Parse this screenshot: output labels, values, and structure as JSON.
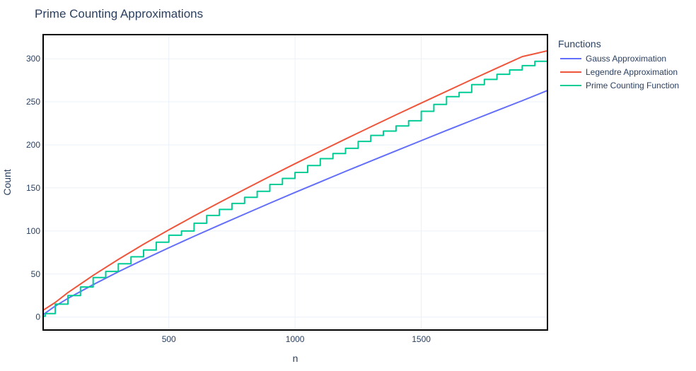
{
  "chart_data": {
    "type": "line",
    "title": "Prime Counting Approximations",
    "xlabel": "n",
    "ylabel": "Count",
    "xlim": [
      2,
      2000
    ],
    "ylim": [
      -15,
      328
    ],
    "x_ticks": [
      500,
      1000,
      1500
    ],
    "y_ticks": [
      0,
      50,
      100,
      150,
      200,
      250,
      300
    ],
    "grid": true,
    "legend": {
      "title": "Functions",
      "placement": "right"
    },
    "series": [
      {
        "name": "Gauss Approximation",
        "color": "#636efa",
        "x": [
          2,
          50,
          100,
          200,
          300,
          400,
          500,
          600,
          700,
          800,
          900,
          1000,
          1100,
          1200,
          1300,
          1400,
          1500,
          1600,
          1700,
          1800,
          1900,
          2000
        ],
        "values": [
          2.9,
          12.8,
          21.7,
          37.7,
          52.6,
          66.8,
          80.5,
          93.8,
          106.8,
          119.6,
          132.3,
          144.8,
          157.0,
          169.2,
          181.2,
          193.1,
          204.9,
          216.7,
          228.3,
          239.9,
          251.3,
          263.1
        ]
      },
      {
        "name": "Legendre Approximation",
        "color": "#ef553b",
        "x": [
          2,
          50,
          100,
          200,
          300,
          400,
          500,
          600,
          700,
          800,
          900,
          1000,
          1100,
          1200,
          1300,
          1400,
          1500,
          1600,
          1700,
          1800,
          1900,
          2000
        ],
        "values": [
          8.0,
          17.0,
          28.4,
          48.4,
          67.0,
          84.6,
          101.3,
          117.4,
          133.0,
          148.3,
          163.4,
          178.1,
          192.5,
          206.8,
          220.9,
          234.9,
          248.6,
          262.2,
          275.8,
          289.2,
          302.5,
          309.2
        ]
      },
      {
        "name": "Prime Counting Function",
        "color": "#00cc96",
        "x": [
          2,
          10,
          50,
          100,
          150,
          200,
          250,
          300,
          350,
          400,
          450,
          500,
          550,
          600,
          650,
          700,
          750,
          800,
          850,
          900,
          950,
          1000,
          1050,
          1100,
          1150,
          1200,
          1250,
          1300,
          1350,
          1400,
          1450,
          1500,
          1550,
          1600,
          1650,
          1700,
          1750,
          1800,
          1850,
          1900,
          1950,
          2000
        ],
        "values": [
          1,
          4,
          15,
          25,
          35,
          46,
          53,
          62,
          70,
          78,
          87,
          95,
          100,
          109,
          118,
          125,
          132,
          139,
          146,
          154,
          161,
          168,
          176,
          184,
          190,
          196,
          204,
          211,
          216,
          222,
          228,
          239,
          247,
          256,
          261,
          270,
          276,
          282,
          287,
          292,
          297,
          303
        ]
      }
    ]
  }
}
